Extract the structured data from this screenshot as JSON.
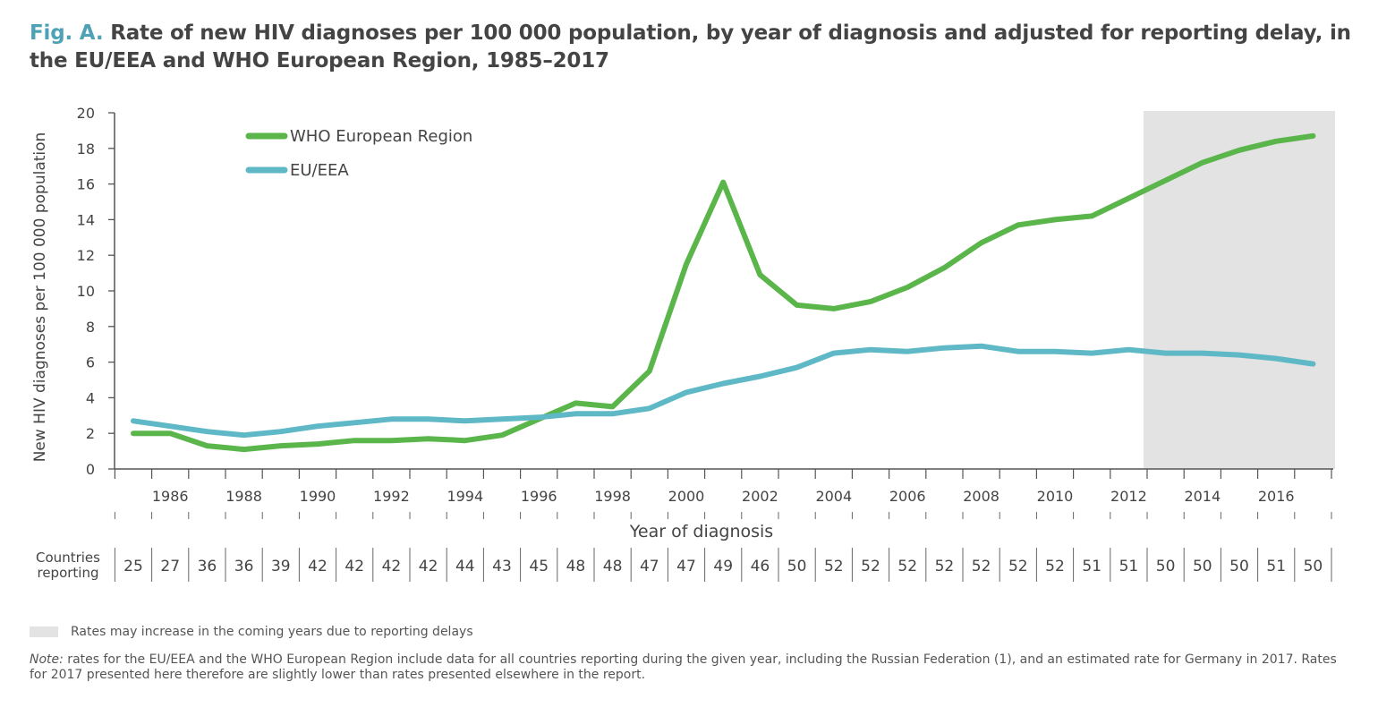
{
  "title": {
    "fig_label": "Fig. A.",
    "text": "Rate of new HIV diagnoses per 100 000 population, by year of diagnosis and adjusted for reporting delay, in the EU/EEA and WHO European Region, 1985–2017"
  },
  "chart_data": {
    "type": "line",
    "ylabel": "New HIV diagnoses per 100 000 population",
    "xlabel": "Year of diagnosis",
    "ylim": [
      0,
      20
    ],
    "xlim": [
      1985,
      2017
    ],
    "yticks": [
      0,
      2,
      4,
      6,
      8,
      10,
      12,
      14,
      16,
      18,
      20
    ],
    "xtick_labels": [
      "1986",
      "1988",
      "1990",
      "1992",
      "1994",
      "1996",
      "1998",
      "2000",
      "2002",
      "2004",
      "2006",
      "2008",
      "2010",
      "2012",
      "2014",
      "2016"
    ],
    "x": [
      1985,
      1986,
      1987,
      1988,
      1989,
      1990,
      1991,
      1992,
      1993,
      1994,
      1995,
      1996,
      1997,
      1998,
      1999,
      2000,
      2001,
      2002,
      2003,
      2004,
      2005,
      2006,
      2007,
      2008,
      2009,
      2010,
      2011,
      2012,
      2013,
      2014,
      2015,
      2016,
      2017
    ],
    "series": [
      {
        "name": "WHO European Region",
        "color": "#5ab54a",
        "values": [
          2.0,
          2.0,
          1.3,
          1.1,
          1.3,
          1.4,
          1.6,
          1.6,
          1.7,
          1.6,
          1.9,
          2.8,
          3.7,
          3.5,
          5.5,
          11.5,
          16.1,
          10.9,
          9.2,
          9.0,
          9.4,
          10.2,
          11.3,
          12.7,
          13.7,
          14.0,
          14.2,
          15.2,
          16.2,
          17.2,
          17.9,
          18.4,
          18.7
        ]
      },
      {
        "name": "EU/EEA",
        "color": "#5fb8c6",
        "values": [
          2.7,
          2.4,
          2.1,
          1.9,
          2.1,
          2.4,
          2.6,
          2.8,
          2.8,
          2.7,
          2.8,
          2.9,
          3.1,
          3.1,
          3.4,
          4.3,
          4.8,
          5.2,
          5.7,
          6.5,
          6.7,
          6.6,
          6.8,
          6.9,
          6.6,
          6.6,
          6.5,
          6.7,
          6.5,
          6.5,
          6.4,
          6.2,
          5.9
        ]
      }
    ],
    "shaded_region": {
      "from": 2012.4,
      "to": 2017.8,
      "color": "#e3e3e3"
    },
    "legend_position": "top-left",
    "grid": false,
    "countries_reporting": {
      "label_line1": "Countries",
      "label_line2": "reporting",
      "values": [
        25,
        27,
        36,
        36,
        39,
        42,
        42,
        42,
        42,
        44,
        43,
        45,
        48,
        48,
        47,
        47,
        49,
        46,
        50,
        52,
        52,
        52,
        52,
        52,
        52,
        52,
        51,
        51,
        50,
        50,
        50,
        51,
        50
      ]
    }
  },
  "footnotes": {
    "shade_legend": "Rates may increase in the coming years due to reporting delays",
    "note_label": "Note:",
    "note_text": " rates for the EU/EEA and the WHO European Region include data for all countries reporting during the given year, including the Russian Federation (1), and an estimated rate for Germany in 2017. Rates for 2017 presented here therefore are slightly lower than rates presented elsewhere in the report."
  }
}
